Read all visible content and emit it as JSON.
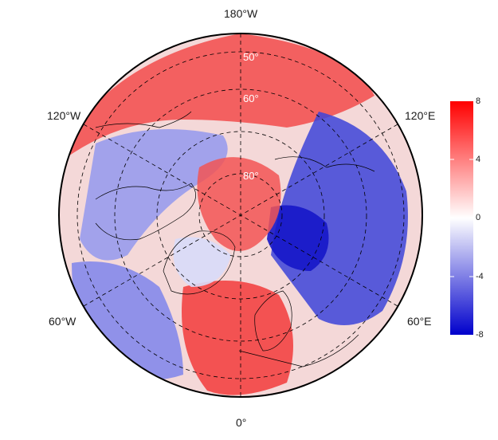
{
  "map": {
    "projection": "north-polar-stereographic",
    "longitude_labels": {
      "top": "180°W",
      "upper_left": "120°W",
      "upper_right": "120°E",
      "lower_left": "60°W",
      "lower_right": "60°E",
      "bottom": "0°"
    },
    "latitude_labels": [
      "50°",
      "60°",
      "80°"
    ],
    "colors": {
      "low": "#0000cc",
      "mid": "#ffffff",
      "high": "#ff0000"
    }
  },
  "colorbar": {
    "min": -8,
    "max": 8,
    "ticks": [
      "8",
      "4",
      "0",
      "-4",
      "-8"
    ]
  }
}
